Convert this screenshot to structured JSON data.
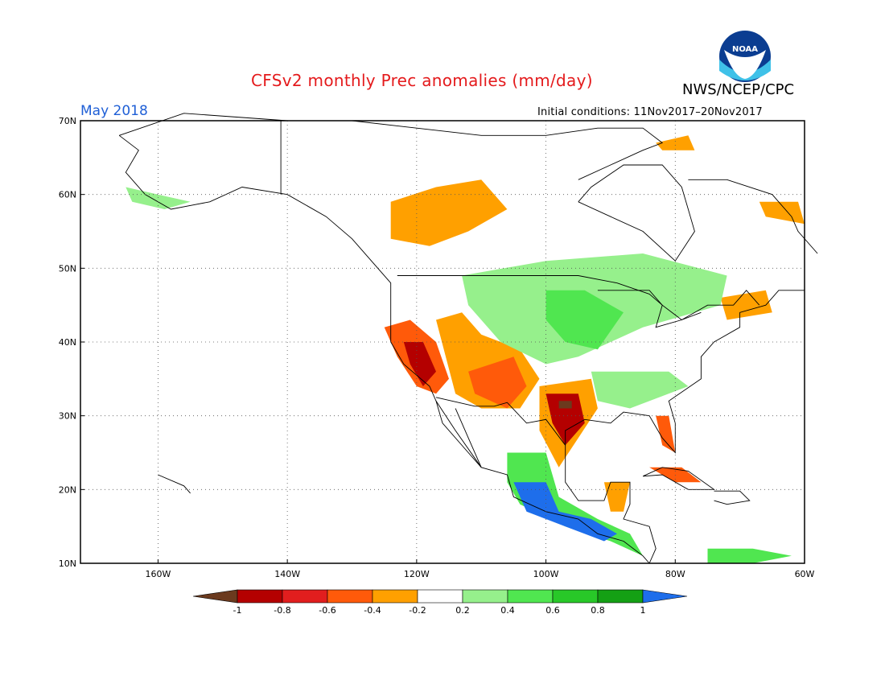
{
  "header": {
    "title": "CFSv2 monthly Prec anomalies (mm/day)",
    "agency": "NWS/NCEP/CPC",
    "logo_text": "NOAA",
    "period": "May 2018",
    "initial_conditions": "Initial conditions: 11Nov2017–20Nov2017"
  },
  "map": {
    "lon_range": [
      -172,
      -60
    ],
    "lat_range": [
      10,
      70
    ],
    "lon_labels": [
      "160W",
      "140W",
      "120W",
      "100W",
      "80W",
      "60W"
    ],
    "lon_values": [
      -160,
      -140,
      -120,
      -100,
      -80,
      -60
    ],
    "lat_labels": [
      "10N",
      "20N",
      "30N",
      "40N",
      "50N",
      "60N",
      "70N"
    ],
    "lat_values": [
      10,
      20,
      30,
      40,
      50,
      60,
      70
    ]
  },
  "colorbar": {
    "colors": [
      "#6b3a1e",
      "#b40000",
      "#e11e1e",
      "#ff5a0a",
      "#ffa000",
      "#ffffff",
      "#96f08c",
      "#50e650",
      "#28c828",
      "#14a014",
      "#1e6eeb"
    ],
    "tick_labels": [
      "-1",
      "-0.8",
      "-0.6",
      "-0.4",
      "-0.2",
      "0.2",
      "0.4",
      "0.6",
      "0.8",
      "1"
    ]
  },
  "anomaly_regions": [
    {
      "name": "california-dry",
      "level": -0.6,
      "color": "#ff5a0a",
      "poly": [
        [
          -125,
          42
        ],
        [
          -121,
          43
        ],
        [
          -117,
          40
        ],
        [
          -115,
          35
        ],
        [
          -117,
          33
        ],
        [
          -120,
          34
        ],
        [
          -123,
          38
        ]
      ]
    },
    {
      "name": "california-dry-core",
      "level": -0.8,
      "color": "#b40000",
      "poly": [
        [
          -122,
          40
        ],
        [
          -119,
          40
        ],
        [
          -117,
          36
        ],
        [
          -119,
          34
        ],
        [
          -121,
          37
        ]
      ]
    },
    {
      "name": "southwest-dry",
      "level": -0.4,
      "color": "#ffa000",
      "poly": [
        [
          -117,
          43
        ],
        [
          -113,
          44
        ],
        [
          -110,
          41
        ],
        [
          -104,
          39
        ],
        [
          -101,
          35
        ],
        [
          -104,
          31
        ],
        [
          -110,
          31
        ],
        [
          -114,
          33
        ]
      ]
    },
    {
      "name": "southwest-dry-core",
      "level": -0.6,
      "color": "#ff5a0a",
      "poly": [
        [
          -112,
          36
        ],
        [
          -105,
          38
        ],
        [
          -103,
          34
        ],
        [
          -106,
          31
        ],
        [
          -111,
          33
        ]
      ]
    },
    {
      "name": "texas-dry",
      "level": -0.4,
      "color": "#ffa000",
      "poly": [
        [
          -101,
          34
        ],
        [
          -93,
          35
        ],
        [
          -92,
          31
        ],
        [
          -95,
          27
        ],
        [
          -98,
          23
        ],
        [
          -101,
          28
        ]
      ]
    },
    {
      "name": "texas-dry-core",
      "level": -0.8,
      "color": "#b40000",
      "poly": [
        [
          -100,
          33
        ],
        [
          -95,
          33
        ],
        [
          -94,
          29
        ],
        [
          -97,
          26
        ],
        [
          -99,
          29
        ]
      ]
    },
    {
      "name": "texas-dry-center",
      "level": -1.0,
      "color": "#6b3a1e",
      "poly": [
        [
          -98,
          32
        ],
        [
          -96,
          32
        ],
        [
          -96,
          31
        ],
        [
          -98,
          31
        ]
      ]
    },
    {
      "name": "canada-west-dry",
      "level": -0.4,
      "color": "#ffa000",
      "poly": [
        [
          -124,
          59
        ],
        [
          -117,
          61
        ],
        [
          -110,
          62
        ],
        [
          -106,
          58
        ],
        [
          -112,
          55
        ],
        [
          -118,
          53
        ],
        [
          -124,
          54
        ]
      ]
    },
    {
      "name": "hudson-north-dry",
      "level": -0.4,
      "color": "#ffa000",
      "poly": [
        [
          -83,
          67
        ],
        [
          -78,
          68
        ],
        [
          -77,
          66
        ],
        [
          -82,
          66
        ]
      ]
    },
    {
      "name": "labrador-dry",
      "level": -0.4,
      "color": "#ffa000",
      "poly": [
        [
          -67,
          59
        ],
        [
          -61,
          59
        ],
        [
          -60,
          56
        ],
        [
          -66,
          57
        ]
      ]
    },
    {
      "name": "northeast-dry",
      "level": -0.4,
      "color": "#ffa000",
      "poly": [
        [
          -73,
          46
        ],
        [
          -66,
          47
        ],
        [
          -65,
          44
        ],
        [
          -72,
          43
        ]
      ]
    },
    {
      "name": "florida-dry",
      "level": -0.6,
      "color": "#ff5a0a",
      "poly": [
        [
          -83,
          30
        ],
        [
          -81,
          30
        ],
        [
          -80,
          25
        ],
        [
          -82,
          26
        ]
      ]
    },
    {
      "name": "cuba-dry",
      "level": -0.6,
      "color": "#ff5a0a",
      "poly": [
        [
          -84,
          23
        ],
        [
          -79,
          23
        ],
        [
          -76,
          21
        ],
        [
          -80,
          21
        ]
      ]
    },
    {
      "name": "yucatan-dry",
      "level": -0.4,
      "color": "#ffa000",
      "poly": [
        [
          -91,
          21
        ],
        [
          -87,
          21
        ],
        [
          -88,
          17
        ],
        [
          -90,
          17
        ]
      ]
    },
    {
      "name": "plains-wet",
      "level": 0.2,
      "color": "#96f08c",
      "poly": [
        [
          -113,
          49
        ],
        [
          -100,
          51
        ],
        [
          -85,
          52
        ],
        [
          -72,
          49
        ],
        [
          -73,
          45
        ],
        [
          -85,
          42
        ],
        [
          -95,
          38
        ],
        [
          -100,
          37
        ],
        [
          -107,
          40
        ],
        [
          -112,
          45
        ]
      ]
    },
    {
      "name": "plains-wet-core",
      "level": 0.4,
      "color": "#50e650",
      "poly": [
        [
          -100,
          47
        ],
        [
          -94,
          47
        ],
        [
          -88,
          44
        ],
        [
          -92,
          39
        ],
        [
          -97,
          40
        ],
        [
          -100,
          43
        ]
      ]
    },
    {
      "name": "southeast-wet",
      "level": 0.2,
      "color": "#96f08c",
      "poly": [
        [
          -93,
          36
        ],
        [
          -81,
          36
        ],
        [
          -78,
          34
        ],
        [
          -87,
          31
        ],
        [
          -92,
          32
        ]
      ]
    },
    {
      "name": "mexico-wet",
      "level": 0.4,
      "color": "#50e650",
      "poly": [
        [
          -106,
          25
        ],
        [
          -100,
          25
        ],
        [
          -98,
          19
        ],
        [
          -92,
          16
        ],
        [
          -87,
          14
        ],
        [
          -85,
          11
        ],
        [
          -90,
          13
        ],
        [
          -97,
          15
        ],
        [
          -104,
          18
        ],
        [
          -106,
          21
        ]
      ]
    },
    {
      "name": "mexico-wet-core",
      "level": 1.0,
      "color": "#1e6eeb",
      "poly": [
        [
          -105,
          21
        ],
        [
          -100,
          21
        ],
        [
          -98,
          17
        ],
        [
          -93,
          16
        ],
        [
          -89,
          14
        ],
        [
          -91,
          13
        ],
        [
          -97,
          15
        ],
        [
          -103,
          17
        ]
      ]
    },
    {
      "name": "alaska-wet",
      "level": 0.2,
      "color": "#96f08c",
      "poly": [
        [
          -165,
          61
        ],
        [
          -160,
          60
        ],
        [
          -155,
          59
        ],
        [
          -159,
          58
        ],
        [
          -164,
          59
        ]
      ]
    },
    {
      "name": "caribbean-wet",
      "level": 0.4,
      "color": "#50e650",
      "poly": [
        [
          -75,
          12
        ],
        [
          -68,
          12
        ],
        [
          -62,
          11
        ],
        [
          -68,
          10
        ],
        [
          -75,
          10
        ]
      ]
    }
  ]
}
